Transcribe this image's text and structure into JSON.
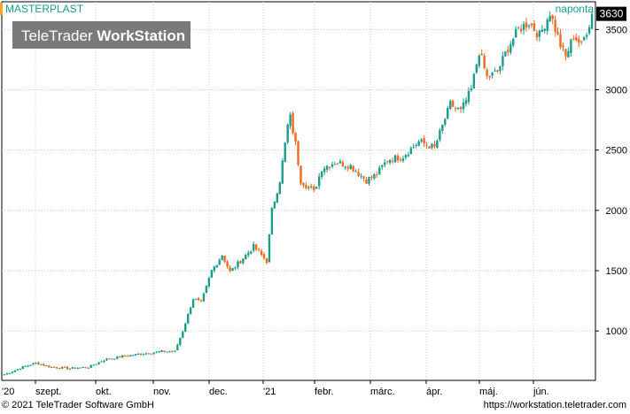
{
  "chart_data": {
    "type": "candlestick",
    "title": "MASTERPLAST",
    "interval_label": "naponta",
    "watermark": {
      "part1": "TeleTrader",
      "part2": "WorkStation"
    },
    "last_value_label": "3630",
    "y_ticks": [
      1000,
      1500,
      2000,
      2500,
      3000,
      3500
    ],
    "ylim": [
      590,
      3730
    ],
    "x_tick_labels": [
      "'20",
      "szept.",
      "okt.",
      "nov.",
      "dec.",
      "'21",
      "febr.",
      "márc.",
      "ápr.",
      "máj.",
      "jún."
    ],
    "grid": true,
    "colors": {
      "up": "#1a9e8a",
      "down": "#f06a1e",
      "title": "#1a9e8a",
      "accent": "#f5a623"
    },
    "anchors": [
      {
        "d": 0,
        "v": 640
      },
      {
        "d": 7,
        "v": 700
      },
      {
        "d": 12,
        "v": 735
      },
      {
        "d": 18,
        "v": 700
      },
      {
        "d": 25,
        "v": 690
      },
      {
        "d": 32,
        "v": 700
      },
      {
        "d": 38,
        "v": 760
      },
      {
        "d": 45,
        "v": 790
      },
      {
        "d": 52,
        "v": 810
      },
      {
        "d": 60,
        "v": 830
      },
      {
        "d": 65,
        "v": 830
      },
      {
        "d": 68,
        "v": 1000
      },
      {
        "d": 72,
        "v": 1270
      },
      {
        "d": 75,
        "v": 1230
      },
      {
        "d": 79,
        "v": 1500
      },
      {
        "d": 83,
        "v": 1630
      },
      {
        "d": 86,
        "v": 1490
      },
      {
        "d": 90,
        "v": 1580
      },
      {
        "d": 95,
        "v": 1700
      },
      {
        "d": 100,
        "v": 1580
      },
      {
        "d": 102,
        "v": 2000
      },
      {
        "d": 105,
        "v": 2250
      },
      {
        "d": 108,
        "v": 2700
      },
      {
        "d": 109,
        "v": 2770
      },
      {
        "d": 111,
        "v": 2550
      },
      {
        "d": 113,
        "v": 2250
      },
      {
        "d": 118,
        "v": 2150
      },
      {
        "d": 121,
        "v": 2350
      },
      {
        "d": 126,
        "v": 2400
      },
      {
        "d": 132,
        "v": 2370
      },
      {
        "d": 138,
        "v": 2250
      },
      {
        "d": 142,
        "v": 2300
      },
      {
        "d": 146,
        "v": 2420
      },
      {
        "d": 152,
        "v": 2450
      },
      {
        "d": 158,
        "v": 2570
      },
      {
        "d": 164,
        "v": 2520
      },
      {
        "d": 170,
        "v": 2880
      },
      {
        "d": 174,
        "v": 2820
      },
      {
        "d": 178,
        "v": 3000
      },
      {
        "d": 181,
        "v": 3320
      },
      {
        "d": 184,
        "v": 3100
      },
      {
        "d": 188,
        "v": 3150
      },
      {
        "d": 192,
        "v": 3350
      },
      {
        "d": 196,
        "v": 3500
      },
      {
        "d": 200,
        "v": 3560
      },
      {
        "d": 204,
        "v": 3450
      },
      {
        "d": 208,
        "v": 3640
      },
      {
        "d": 212,
        "v": 3370
      },
      {
        "d": 214,
        "v": 3270
      },
      {
        "d": 217,
        "v": 3450
      },
      {
        "d": 220,
        "v": 3370
      },
      {
        "d": 223,
        "v": 3550
      },
      {
        "d": 224,
        "v": 3630
      }
    ]
  },
  "footer": {
    "copyright": "© 2021 TeleTrader Software GmbH",
    "url": "https://workstation.teletrader.com"
  }
}
